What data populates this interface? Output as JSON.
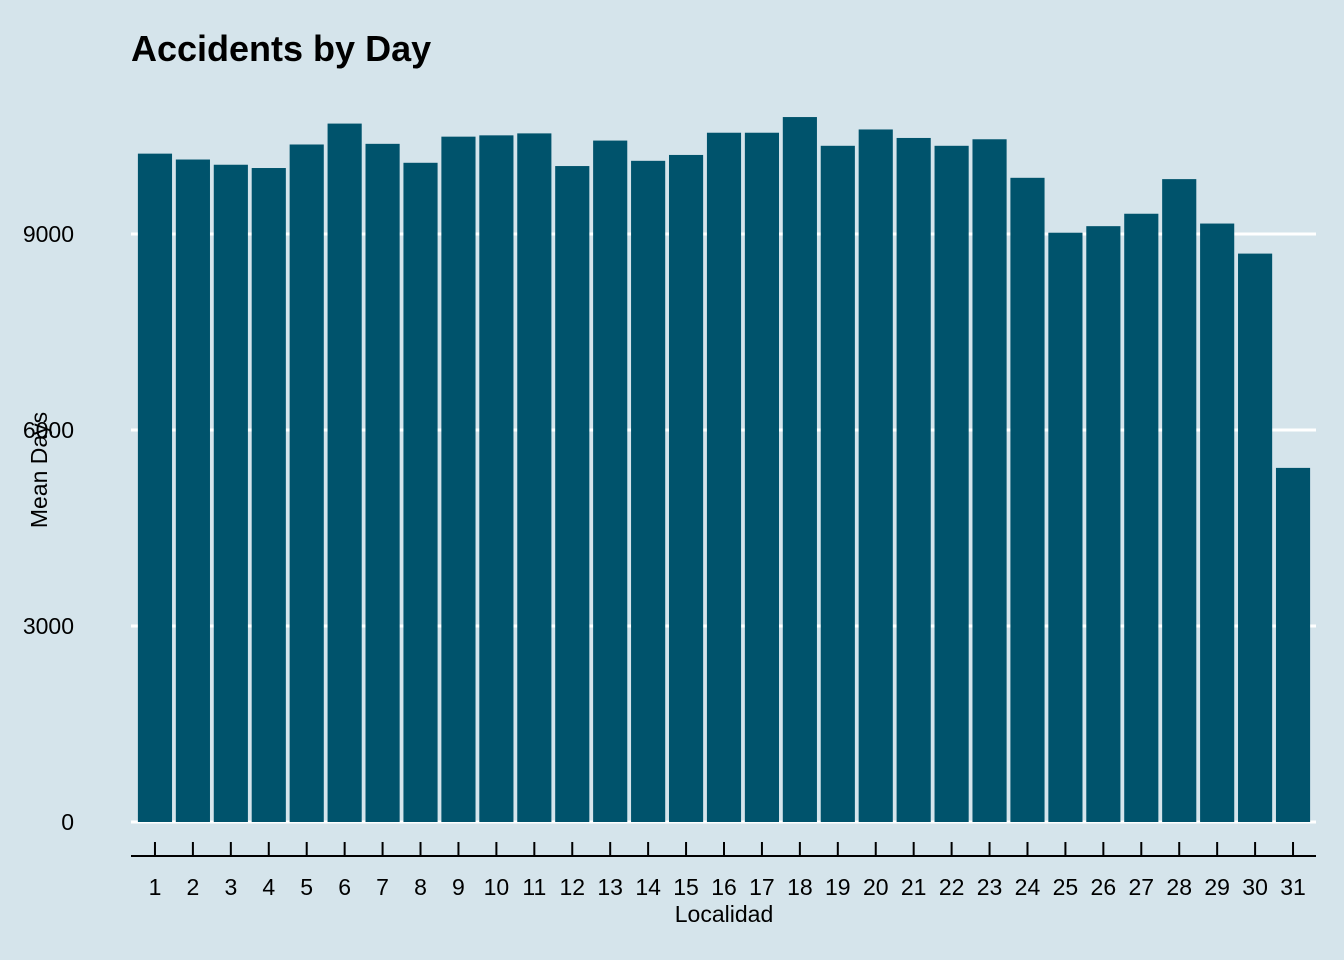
{
  "chart_data": {
    "type": "bar",
    "title": "Accidents by Day",
    "xlabel": "Localidad",
    "ylabel": "Mean Days",
    "categories": [
      "1",
      "2",
      "3",
      "4",
      "5",
      "6",
      "7",
      "8",
      "9",
      "10",
      "11",
      "12",
      "13",
      "14",
      "15",
      "16",
      "17",
      "18",
      "19",
      "20",
      "21",
      "22",
      "23",
      "24",
      "25",
      "26",
      "27",
      "28",
      "29",
      "30",
      "31"
    ],
    "values": [
      10230,
      10140,
      10060,
      10010,
      10370,
      10690,
      10380,
      10090,
      10490,
      10510,
      10540,
      10040,
      10430,
      10120,
      10210,
      10550,
      10550,
      10790,
      10350,
      10600,
      10470,
      10350,
      10450,
      9860,
      9020,
      9120,
      9310,
      9840,
      9160,
      8700,
      5420
    ],
    "yticks": [
      "0",
      "3000",
      "6000",
      "9000"
    ],
    "ylim": [
      0,
      11000
    ],
    "grid": true,
    "legend": "none",
    "bar_color": "#00536c",
    "background_color": "#d5e4eb"
  }
}
